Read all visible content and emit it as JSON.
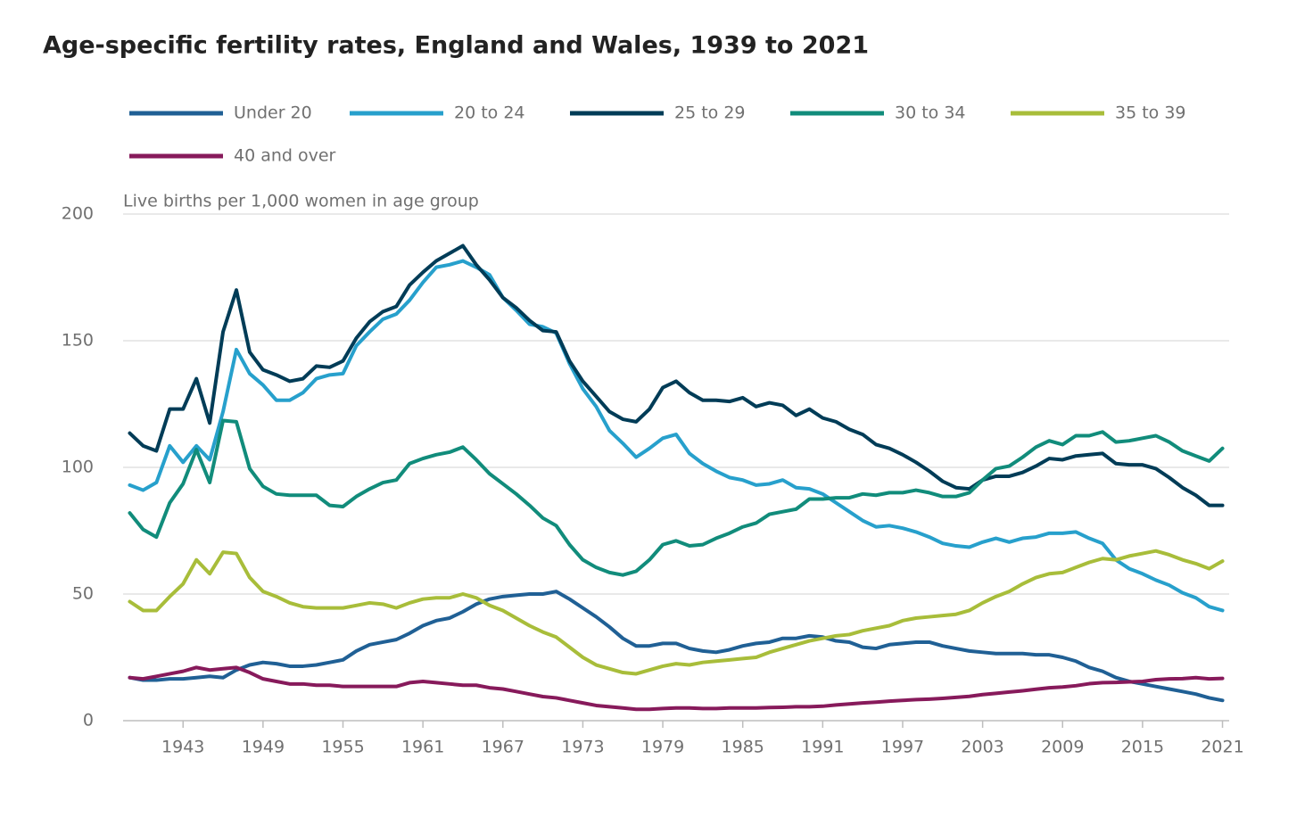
{
  "chart_data": {
    "type": "line",
    "title": "Age-specific fertility rates, England and Wales, 1939 to 2021",
    "y_label": "Live births per 1,000 women in age group",
    "x": [
      1939,
      1940,
      1941,
      1942,
      1943,
      1944,
      1945,
      1946,
      1947,
      1948,
      1949,
      1950,
      1951,
      1952,
      1953,
      1954,
      1955,
      1956,
      1957,
      1958,
      1959,
      1960,
      1961,
      1962,
      1963,
      1964,
      1965,
      1966,
      1967,
      1968,
      1969,
      1970,
      1971,
      1972,
      1973,
      1974,
      1975,
      1976,
      1977,
      1978,
      1979,
      1980,
      1981,
      1982,
      1983,
      1984,
      1985,
      1986,
      1987,
      1988,
      1989,
      1990,
      1991,
      1992,
      1993,
      1994,
      1995,
      1996,
      1997,
      1998,
      1999,
      2000,
      2001,
      2002,
      2003,
      2004,
      2005,
      2006,
      2007,
      2008,
      2009,
      2010,
      2011,
      2012,
      2013,
      2014,
      2015,
      2016,
      2017,
      2018,
      2019,
      2020,
      2021
    ],
    "xlim": [
      1938.5,
      2021.5
    ],
    "xticks": [
      1943,
      1949,
      1955,
      1961,
      1967,
      1973,
      1979,
      1985,
      1991,
      1997,
      2003,
      2009,
      2015,
      2021
    ],
    "ylim": [
      0,
      200
    ],
    "yticks": [
      0,
      50,
      100,
      150,
      200
    ],
    "grid": true,
    "legend": "top",
    "series": [
      {
        "name": "Under 20",
        "color": "#206095",
        "values": [
          17,
          16,
          16,
          16.5,
          16.5,
          17,
          17.5,
          17,
          20,
          22,
          23,
          22.5,
          21.5,
          21.5,
          22,
          23,
          24,
          27.5,
          30,
          31,
          32,
          34.5,
          37.5,
          39.5,
          40.5,
          43,
          46,
          48,
          49,
          49.5,
          50,
          50,
          51,
          48,
          44.5,
          41,
          37,
          32.5,
          29.5,
          29.5,
          30.5,
          30.5,
          28.5,
          27.5,
          27,
          28,
          29.5,
          30.5,
          31,
          32.5,
          32.5,
          33.5,
          33,
          31.5,
          31,
          29,
          28.5,
          30,
          30.5,
          31,
          31,
          29.5,
          28.5,
          27.5,
          27,
          26.5,
          26.5,
          26.5,
          26,
          26,
          25,
          23.5,
          21,
          19.5,
          17,
          15.5,
          14.5,
          13.5,
          12.5,
          11.5,
          10.5,
          9,
          8
        ]
      },
      {
        "name": "20 to 24",
        "color": "#27a0cc",
        "values": [
          93,
          91,
          94,
          108.5,
          102,
          108.5,
          103,
          122,
          146.5,
          137,
          132.5,
          126.5,
          126.5,
          129.5,
          135,
          136.5,
          137,
          148,
          153.5,
          158.5,
          160.5,
          166,
          173,
          179,
          180,
          181.5,
          179,
          176,
          167,
          162,
          156.5,
          155.5,
          153,
          141,
          131,
          124,
          114.5,
          109.5,
          104,
          107.5,
          111.5,
          113,
          105.5,
          101.5,
          98.5,
          96,
          95,
          93,
          93.5,
          95,
          92,
          91.5,
          89.5,
          86,
          82.5,
          79,
          76.5,
          77,
          76,
          74.5,
          72.5,
          70,
          69,
          68.5,
          70.5,
          72,
          70.5,
          72,
          72.5,
          74,
          74,
          74.5,
          72,
          70,
          63.5,
          60,
          58,
          55.5,
          53.5,
          50.5,
          48.5,
          45,
          43.5
        ]
      },
      {
        "name": "25 to 29",
        "color": "#003c57",
        "values": [
          113.5,
          108.5,
          106.5,
          123,
          123,
          135,
          117.5,
          153.5,
          170,
          145.5,
          138.5,
          136.5,
          134,
          135,
          140,
          139.5,
          142,
          151,
          157.5,
          161.5,
          163.5,
          172,
          177,
          181.5,
          184.5,
          187.5,
          180,
          174,
          167,
          163,
          158,
          154,
          153.5,
          142,
          134,
          128,
          122,
          119,
          118,
          123,
          131.5,
          134,
          129.5,
          126.5,
          126.5,
          126,
          127.5,
          124,
          125.5,
          124.5,
          120.5,
          123,
          119.5,
          118,
          115,
          113,
          109,
          107.5,
          105,
          102,
          98.5,
          94.5,
          92,
          91.5,
          95,
          96.5,
          96.5,
          98,
          100.5,
          103.5,
          103,
          104.5,
          105,
          105.5,
          101.5,
          101,
          101,
          99.5,
          96,
          92,
          89,
          85,
          85
        ]
      },
      {
        "name": "30 to 34",
        "color": "#118c7b",
        "values": [
          82,
          75.5,
          72.5,
          86,
          93.5,
          107,
          94,
          118.5,
          118,
          99.5,
          92.5,
          89.5,
          89,
          89,
          89,
          85,
          84.5,
          88.5,
          91.5,
          94,
          95,
          101.5,
          103.5,
          105,
          106,
          108,
          103,
          97.5,
          93.5,
          89.5,
          85,
          80,
          77,
          69.5,
          63.5,
          60.5,
          58.5,
          57.5,
          59,
          63.5,
          69.5,
          71,
          69,
          69.5,
          72,
          74,
          76.5,
          78,
          81.5,
          82.5,
          83.5,
          87.5,
          87.5,
          88,
          88,
          89.5,
          89,
          90,
          90,
          91,
          90,
          88.5,
          88.5,
          90,
          95,
          99.5,
          100.5,
          104,
          108,
          110.5,
          109,
          112.5,
          112.5,
          114,
          110,
          110.5,
          111.5,
          112.5,
          110,
          106.5,
          104.5,
          102.5,
          107.5
        ]
      },
      {
        "name": "35 to 39",
        "color": "#a8bd3a",
        "values": [
          47,
          43.5,
          43.5,
          49,
          54,
          63.5,
          58,
          66.5,
          66,
          56.5,
          51,
          49,
          46.5,
          45,
          44.5,
          44.5,
          44.5,
          45.5,
          46.5,
          46,
          44.5,
          46.5,
          48,
          48.5,
          48.5,
          50,
          48.5,
          45.5,
          43.5,
          40.5,
          37.5,
          35,
          33,
          29,
          25,
          22,
          20.5,
          19,
          18.5,
          20,
          21.5,
          22.5,
          22,
          23,
          23.5,
          24,
          24.5,
          25,
          27,
          28.5,
          30,
          31.5,
          32.5,
          33.5,
          34,
          35.5,
          36.5,
          37.5,
          39.5,
          40.5,
          41,
          41.5,
          42,
          43.5,
          46.5,
          49,
          51,
          54,
          56.5,
          58,
          58.5,
          60.5,
          62.5,
          64,
          63.5,
          65,
          66,
          67,
          65.5,
          63.5,
          62,
          60,
          63
        ]
      },
      {
        "name": "40 and over",
        "color": "#871a5b",
        "values": [
          17,
          16.5,
          17.5,
          18.5,
          19.5,
          21,
          20,
          20.5,
          21,
          19,
          16.5,
          15.5,
          14.5,
          14.5,
          14,
          14,
          13.5,
          13.5,
          13.5,
          13.5,
          13.5,
          15,
          15.5,
          15,
          14.5,
          14,
          14,
          13,
          12.5,
          11.5,
          10.5,
          9.5,
          9,
          8,
          7,
          6,
          5.5,
          5,
          4.5,
          4.5,
          4.8,
          5,
          5,
          4.8,
          4.8,
          5,
          5,
          5,
          5.2,
          5.3,
          5.5,
          5.5,
          5.7,
          6.2,
          6.6,
          7,
          7.3,
          7.7,
          8,
          8.3,
          8.5,
          8.8,
          9.2,
          9.6,
          10.3,
          10.8,
          11.3,
          11.8,
          12.4,
          13,
          13.3,
          13.8,
          14.6,
          15,
          15.1,
          15.3,
          15.5,
          16.2,
          16.5,
          16.6,
          17,
          16.5,
          16.7
        ]
      }
    ]
  }
}
